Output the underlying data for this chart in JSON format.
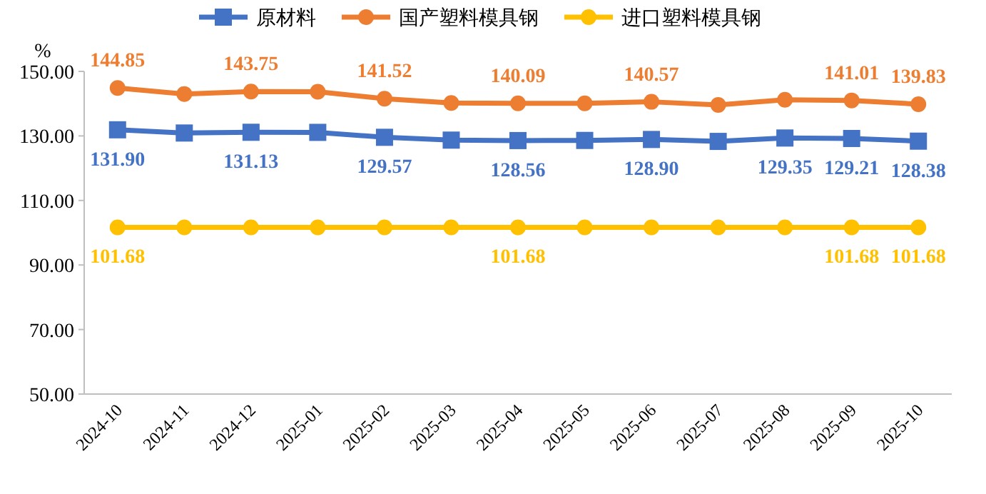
{
  "chart_data": {
    "type": "line",
    "ylabel": "%",
    "categories": [
      "2024-10",
      "2024-11",
      "2024-12",
      "2025-01",
      "2025-02",
      "2025-03",
      "2025-04",
      "2025-05",
      "2025-06",
      "2025-07",
      "2025-08",
      "2025-09",
      "2025-10"
    ],
    "series": [
      {
        "name": "原材料",
        "color": "#4472c4",
        "marker": "square",
        "values": [
          131.9,
          130.9,
          131.13,
          131.1,
          129.57,
          128.7,
          128.56,
          128.6,
          128.9,
          128.3,
          129.35,
          129.21,
          128.38
        ],
        "value_labels": [
          "131.90",
          null,
          "131.13",
          null,
          "129.57",
          null,
          "128.56",
          null,
          "128.90",
          null,
          "129.35",
          "129.21",
          "128.38"
        ]
      },
      {
        "name": "国产塑料模具钢",
        "color": "#ed7d31",
        "marker": "circle",
        "values": [
          144.85,
          143.0,
          143.75,
          143.7,
          141.52,
          140.2,
          140.09,
          140.1,
          140.57,
          139.6,
          141.2,
          141.01,
          139.83
        ],
        "value_labels": [
          "144.85",
          null,
          "143.75",
          null,
          "141.52",
          null,
          "140.09",
          null,
          "140.57",
          null,
          null,
          "141.01",
          "139.83"
        ]
      },
      {
        "name": "进口塑料模具钢",
        "color": "#ffc000",
        "marker": "circle",
        "values": [
          101.68,
          101.68,
          101.68,
          101.68,
          101.68,
          101.68,
          101.68,
          101.68,
          101.68,
          101.68,
          101.68,
          101.68,
          101.68
        ],
        "value_labels": [
          "101.68",
          null,
          null,
          null,
          null,
          null,
          "101.68",
          null,
          null,
          null,
          null,
          "101.68",
          "101.68"
        ]
      }
    ],
    "ylim": [
      50,
      150
    ],
    "yticks": [
      {
        "value": 50,
        "label": "50.00"
      },
      {
        "value": 70,
        "label": "70.00"
      },
      {
        "value": 90,
        "label": "90.00"
      },
      {
        "value": 110,
        "label": "110.00"
      },
      {
        "value": 130,
        "label": "130.00"
      },
      {
        "value": 150,
        "label": "150.00"
      }
    ],
    "grid": false,
    "legend": "top",
    "line_style": "solid"
  }
}
